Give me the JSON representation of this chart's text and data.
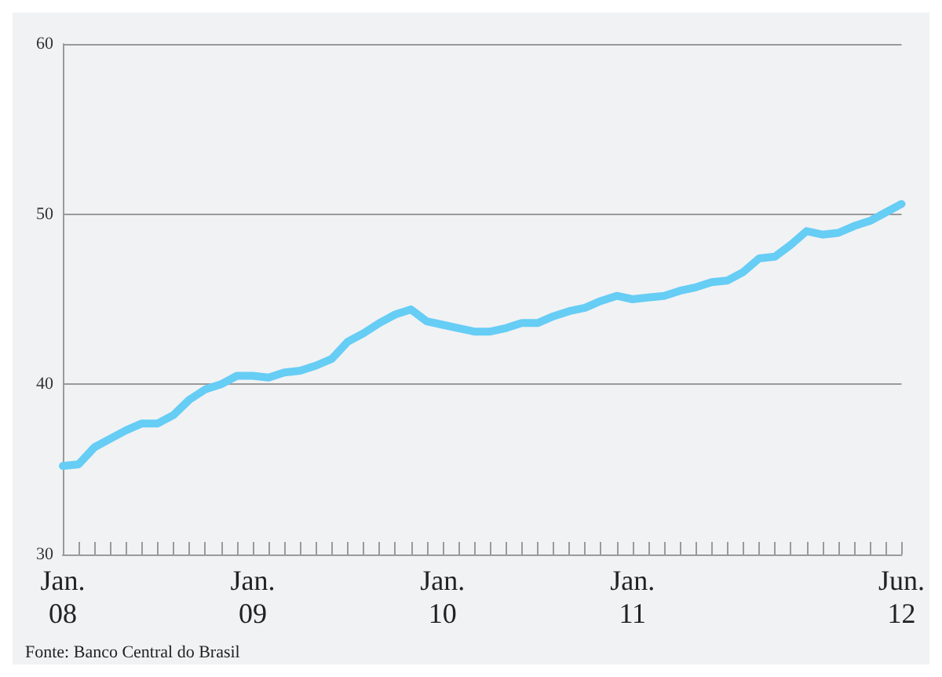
{
  "chart_data": {
    "type": "line",
    "categories": [
      "Jan.\n08",
      null,
      null,
      null,
      null,
      null,
      null,
      null,
      null,
      null,
      null,
      null,
      "Jan.\n09",
      null,
      null,
      null,
      null,
      null,
      null,
      null,
      null,
      null,
      null,
      null,
      "Jan.\n10",
      null,
      null,
      null,
      null,
      null,
      null,
      null,
      null,
      null,
      null,
      null,
      "Jan.\n11",
      null,
      null,
      null,
      null,
      null,
      null,
      null,
      null,
      null,
      null,
      null,
      null,
      null,
      null,
      null,
      null,
      "Jun.\n12"
    ],
    "series": [
      {
        "color": "#66cdf5",
        "values": [
          35.2,
          35.3,
          36.3,
          36.8,
          37.3,
          37.7,
          37.7,
          38.2,
          39.1,
          39.7,
          40.0,
          40.5,
          40.5,
          40.4,
          40.7,
          40.8,
          41.1,
          41.5,
          42.5,
          43.0,
          43.6,
          44.1,
          44.4,
          43.7,
          43.5,
          43.3,
          43.1,
          43.1,
          43.3,
          43.6,
          43.6,
          44.0,
          44.3,
          44.5,
          44.9,
          45.2,
          45.0,
          45.1,
          45.2,
          45.5,
          45.7,
          46.0,
          46.1,
          46.6,
          47.4,
          47.5,
          48.2,
          49.0,
          48.8,
          48.9,
          49.3,
          49.6,
          50.1,
          50.6
        ]
      }
    ],
    "ylim": [
      30,
      60
    ],
    "yticks": [
      30,
      40,
      50,
      60
    ],
    "grid": "y",
    "marker": "none",
    "line_style": "solid",
    "annotations": [
      "Fonte: Banco Central do Brasil"
    ]
  }
}
